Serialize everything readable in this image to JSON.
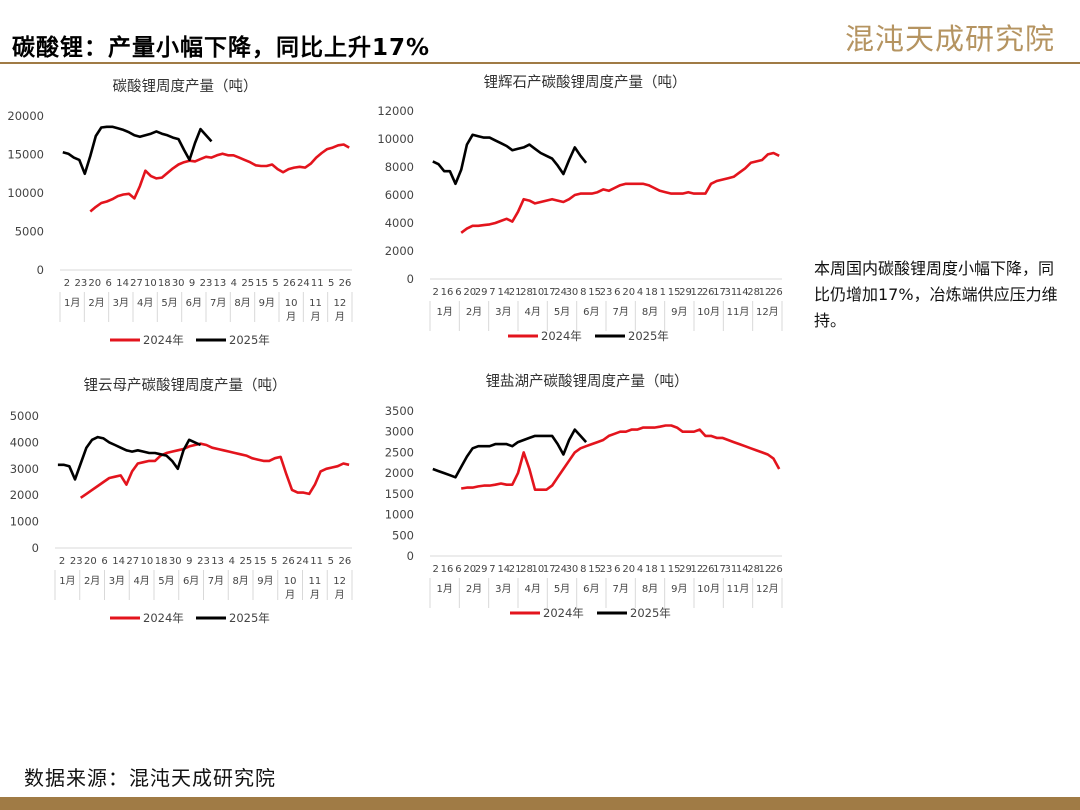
{
  "header": {
    "title": "碳酸锂：产量小幅下降，同比上升17%"
  },
  "logo": {
    "text": "混沌天成研究院"
  },
  "note": {
    "text": "本周国内碳酸锂周度小幅下降，同比仍增加17%，冶炼端供应压力维持。"
  },
  "source": {
    "text": "数据来源：混沌天成研究院"
  },
  "colors": {
    "series_2024": "#e3141d",
    "series_2025": "#000000",
    "accent": "#a07b45"
  },
  "chart_data": [
    {
      "type": "line",
      "title": "碳酸锂周度产量（吨）",
      "ylim": [
        0,
        20000
      ],
      "yticks": [
        0,
        5000,
        10000,
        15000,
        20000
      ],
      "grid": false,
      "legend": "bottom",
      "x_tick_labels": [
        "2",
        "23",
        "20",
        "6",
        "14",
        "27",
        "10",
        "18",
        "30",
        "9",
        "23",
        "13",
        "4",
        "25",
        "15",
        "5",
        "26",
        "24",
        "11",
        "5",
        "26"
      ],
      "x_month_labels": [
        "1月",
        "2月",
        "3月",
        "4月",
        "5月",
        "6月",
        "7月",
        "8月",
        "9月",
        "10\n月",
        "11\n月",
        "12\n月"
      ],
      "series": [
        {
          "name": "2024年",
          "start": 5,
          "values": [
            7600,
            8200,
            8700,
            8900,
            9200,
            9600,
            9800,
            9900,
            9300,
            10900,
            12900,
            12200,
            11900,
            12000,
            12600,
            13200,
            13700,
            14000,
            14200,
            14100,
            14400,
            14700,
            14600,
            14900,
            15100,
            14900,
            14900,
            14600,
            14300,
            14000,
            13600,
            13500,
            13500,
            13700,
            13100,
            12700,
            13100,
            13300,
            13400,
            13300,
            13800,
            14600,
            15200,
            15700,
            15900,
            16200,
            16300,
            15900
          ]
        },
        {
          "name": "2025年",
          "start": 0,
          "values": [
            15300,
            15100,
            14600,
            14300,
            12500,
            14800,
            17400,
            18500,
            18600,
            18600,
            18400,
            18200,
            17900,
            17500,
            17300,
            17500,
            17700,
            18000,
            17700,
            17500,
            17200,
            17000,
            15600,
            14300,
            16500,
            18300,
            17500,
            16700
          ]
        }
      ]
    },
    {
      "type": "line",
      "title": "锂辉石产碳酸锂周度产量（吨）",
      "ylim": [
        0,
        12000
      ],
      "yticks": [
        0,
        2000,
        4000,
        6000,
        8000,
        10000,
        12000
      ],
      "grid": false,
      "legend": "bottom",
      "x_tick_labels": [
        "2",
        "16",
        "6",
        "20",
        "29",
        "7",
        "14",
        "21",
        "28",
        "10",
        "17",
        "24",
        "30",
        "8",
        "15",
        "23",
        "6",
        "20",
        "4",
        "18",
        "1",
        "15",
        "29",
        "12",
        "26",
        "17",
        "31",
        "14",
        "28",
        "12",
        "26"
      ],
      "x_month_labels": [
        "1月",
        "2月",
        "3月",
        "4月",
        "5月",
        "6月",
        "7月",
        "8月",
        "9月",
        "10月",
        "11月",
        "12月"
      ],
      "series": [
        {
          "name": "2024年",
          "start": 5,
          "values": [
            3300,
            3600,
            3800,
            3800,
            3850,
            3900,
            4000,
            4150,
            4300,
            4100,
            4800,
            5700,
            5600,
            5400,
            5500,
            5600,
            5700,
            5600,
            5500,
            5700,
            6000,
            6100,
            6100,
            6100,
            6200,
            6400,
            6300,
            6500,
            6700,
            6800,
            6800,
            6800,
            6800,
            6700,
            6500,
            6300,
            6200,
            6100,
            6100,
            6100,
            6200,
            6100,
            6100,
            6100,
            6800,
            7000,
            7100,
            7200,
            7300,
            7600,
            7900,
            8300,
            8400,
            8500,
            8900,
            9000,
            8800
          ]
        },
        {
          "name": "2025年",
          "start": 0,
          "values": [
            8400,
            8200,
            7700,
            7700,
            6800,
            7800,
            9600,
            10300,
            10200,
            10100,
            10100,
            9900,
            9700,
            9500,
            9200,
            9300,
            9400,
            9600,
            9300,
            9000,
            8800,
            8600,
            8100,
            7500,
            8500,
            9400,
            8800,
            8300
          ]
        }
      ]
    },
    {
      "type": "line",
      "title": "锂云母产碳酸锂周度产量（吨）",
      "ylim": [
        0,
        5000
      ],
      "yticks": [
        0,
        1000,
        2000,
        3000,
        4000,
        5000
      ],
      "grid": false,
      "legend": "bottom",
      "x_tick_labels": [
        "2",
        "23",
        "20",
        "6",
        "14",
        "27",
        "10",
        "18",
        "30",
        "9",
        "23",
        "13",
        "4",
        "25",
        "15",
        "5",
        "26",
        "24",
        "11",
        "5",
        "26"
      ],
      "x_month_labels": [
        "1月",
        "2月",
        "3月",
        "4月",
        "5月",
        "6月",
        "7月",
        "8月",
        "9月",
        "10\n月",
        "11\n月",
        "12\n月"
      ],
      "series": [
        {
          "name": "2024年",
          "start": 4,
          "values": [
            1900,
            2050,
            2200,
            2350,
            2500,
            2650,
            2700,
            2750,
            2400,
            2900,
            3200,
            3250,
            3300,
            3300,
            3500,
            3600,
            3650,
            3700,
            3750,
            3850,
            3900,
            3950,
            3900,
            3800,
            3750,
            3700,
            3650,
            3600,
            3550,
            3500,
            3400,
            3350,
            3300,
            3300,
            3400,
            3450,
            2800,
            2200,
            2100,
            2100,
            2050,
            2400,
            2900,
            3000,
            3050,
            3100,
            3200,
            3150
          ]
        },
        {
          "name": "2025年",
          "start": 0,
          "values": [
            3150,
            3150,
            3100,
            2600,
            3200,
            3800,
            4100,
            4200,
            4150,
            4000,
            3900,
            3800,
            3700,
            3650,
            3700,
            3650,
            3600,
            3600,
            3550,
            3500,
            3300,
            3000,
            3700,
            4100,
            4000,
            3900
          ]
        }
      ]
    },
    {
      "type": "line",
      "title": "锂盐湖产碳酸锂周度产量（吨）",
      "ylim": [
        0,
        3500
      ],
      "yticks": [
        0,
        500,
        1000,
        1500,
        2000,
        2500,
        3000,
        3500
      ],
      "grid": false,
      "legend": "bottom",
      "x_tick_labels": [
        "2",
        "16",
        "6",
        "20",
        "29",
        "7",
        "14",
        "21",
        "28",
        "10",
        "17",
        "24",
        "30",
        "8",
        "15",
        "23",
        "6",
        "20",
        "4",
        "18",
        "1",
        "15",
        "29",
        "12",
        "26",
        "17",
        "31",
        "14",
        "28",
        "12",
        "26"
      ],
      "x_month_labels": [
        "1月",
        "2月",
        "3月",
        "4月",
        "5月",
        "6月",
        "7月",
        "8月",
        "9月",
        "10月",
        "11月",
        "12月"
      ],
      "series": [
        {
          "name": "2024年",
          "start": 5,
          "values": [
            1630,
            1650,
            1650,
            1680,
            1700,
            1700,
            1720,
            1750,
            1720,
            1720,
            2000,
            2500,
            2100,
            1600,
            1600,
            1600,
            1700,
            1900,
            2100,
            2300,
            2500,
            2600,
            2650,
            2700,
            2750,
            2800,
            2900,
            2950,
            3000,
            3000,
            3050,
            3050,
            3100,
            3100,
            3100,
            3120,
            3150,
            3150,
            3100,
            3000,
            3000,
            3000,
            3050,
            2900,
            2900,
            2850,
            2850,
            2800,
            2750,
            2700,
            2650,
            2600,
            2550,
            2500,
            2450,
            2350,
            2100
          ]
        },
        {
          "name": "2025年",
          "start": 0,
          "values": [
            2100,
            2050,
            2000,
            1950,
            1900,
            2150,
            2400,
            2600,
            2650,
            2650,
            2650,
            2700,
            2700,
            2700,
            2650,
            2750,
            2800,
            2850,
            2900,
            2900,
            2900,
            2900,
            2700,
            2450,
            2800,
            3050,
            2900,
            2750
          ]
        }
      ]
    }
  ]
}
